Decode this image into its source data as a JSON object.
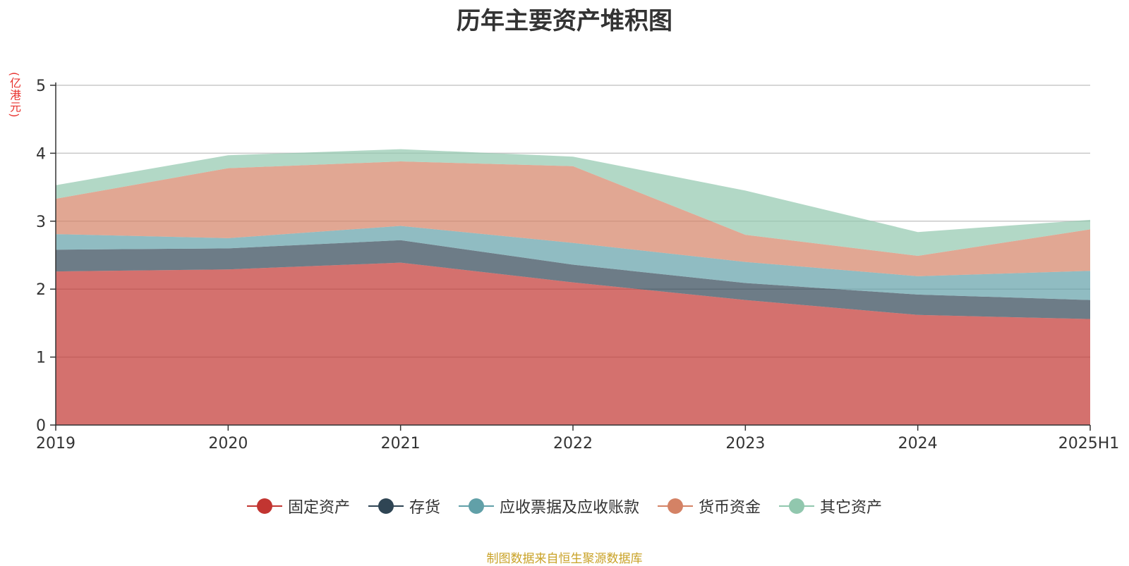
{
  "chart_data": {
    "type": "area",
    "stacked": true,
    "title": "历年主要资产堆积图",
    "ylabel": "(亿港元)",
    "xlabel": "",
    "categories": [
      "2019",
      "2020",
      "2021",
      "2022",
      "2023",
      "2024",
      "2025H1"
    ],
    "ylim": [
      0,
      5
    ],
    "yticks": [
      0,
      1,
      2,
      3,
      4,
      5
    ],
    "grid": true,
    "legend_position": "bottom-center",
    "series": [
      {
        "name": "固定资产",
        "color": "#c23531",
        "values": [
          2.26,
          2.29,
          2.39,
          2.1,
          1.84,
          1.62,
          1.56
        ]
      },
      {
        "name": "存货",
        "color": "#2f4554",
        "values": [
          0.32,
          0.31,
          0.33,
          0.26,
          0.25,
          0.3,
          0.28
        ]
      },
      {
        "name": "应收票据及应收账款",
        "color": "#61a0a8",
        "values": [
          0.23,
          0.15,
          0.21,
          0.32,
          0.31,
          0.27,
          0.43
        ]
      },
      {
        "name": "货币资金",
        "color": "#d48265",
        "values": [
          0.52,
          1.03,
          0.95,
          1.13,
          0.4,
          0.3,
          0.61
        ]
      },
      {
        "name": "其它资产",
        "color": "#91c7ae",
        "values": [
          0.2,
          0.19,
          0.18,
          0.14,
          0.65,
          0.35,
          0.14
        ]
      }
    ]
  },
  "source_note": "制图数据来自恒生聚源数据库"
}
